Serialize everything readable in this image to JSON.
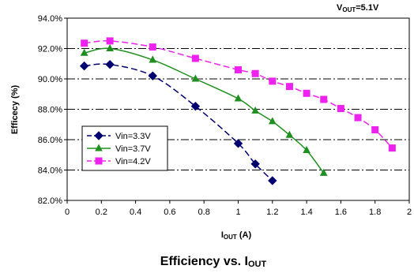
{
  "chart_data": {
    "type": "line",
    "annotation": {
      "main": "V",
      "sub": "OUT",
      "suffix": "=5.1V"
    },
    "xlabel": {
      "main": "I",
      "sub": "OUT",
      "suffix": " (A)"
    },
    "ylabel": "Efficecy (%)",
    "caption": {
      "main": "Efficiency vs. I",
      "sub": "OUT"
    },
    "xlim": [
      0,
      2
    ],
    "ylim": [
      82,
      94
    ],
    "x_ticks": [
      0,
      0.2,
      0.4,
      0.6,
      0.8,
      1,
      1.2,
      1.4,
      1.6,
      1.8,
      2
    ],
    "x_tick_labels": [
      "0",
      "0.2",
      "0.4",
      "0.6",
      "0.8",
      "1",
      "1.2",
      "1.4",
      "1.6",
      "1.8",
      "2"
    ],
    "y_ticks": [
      82,
      84,
      86,
      88,
      90,
      92,
      94
    ],
    "y_tick_labels": [
      "82.0%",
      "84.0%",
      "86.0%",
      "88.0%",
      "90.0%",
      "92.0%",
      "94.0%"
    ],
    "grid": "horizontal-dashed",
    "legend": "left-bottom",
    "series": [
      {
        "name": "Vin=3.3V",
        "color": "#00006f",
        "marker": "diamond",
        "dash": true,
        "x": [
          0.1,
          0.25,
          0.5,
          0.75,
          1.0,
          1.1,
          1.2
        ],
        "y": [
          90.85,
          90.95,
          90.2,
          88.2,
          85.75,
          84.4,
          83.3
        ]
      },
      {
        "name": "Vin=3.7V",
        "color": "#1f8f1f",
        "marker": "triangle",
        "dash": false,
        "x": [
          0.1,
          0.25,
          0.5,
          0.75,
          1.0,
          1.1,
          1.2,
          1.3,
          1.4,
          1.5
        ],
        "y": [
          91.7,
          92.0,
          91.25,
          90.0,
          88.7,
          87.9,
          87.2,
          86.3,
          85.3,
          83.8
        ]
      },
      {
        "name": "Vin=4.2V",
        "color": "#ee22ee",
        "marker": "square",
        "dash": true,
        "x": [
          0.1,
          0.25,
          0.5,
          0.75,
          1.0,
          1.1,
          1.2,
          1.3,
          1.4,
          1.5,
          1.6,
          1.7,
          1.8,
          1.9
        ],
        "y": [
          92.35,
          92.5,
          92.1,
          91.35,
          90.6,
          90.35,
          89.85,
          89.5,
          89.05,
          88.65,
          88.05,
          87.45,
          86.65,
          85.45
        ]
      }
    ]
  }
}
